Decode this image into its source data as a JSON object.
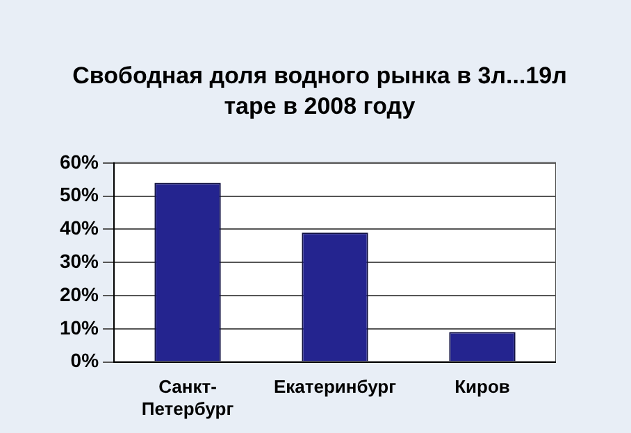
{
  "chart_data": {
    "type": "bar",
    "title": "Свободная доля водного рынка в 3л...19л таре в 2008 году",
    "categories": [
      "Санкт-Петербург",
      "Екатеринбург",
      "Киров"
    ],
    "values": [
      54,
      39,
      9
    ],
    "color": "#24248f",
    "ylim": [
      0,
      60
    ],
    "yticks": [
      {
        "value": 0,
        "label": "0%"
      },
      {
        "value": 10,
        "label": "10%"
      },
      {
        "value": 20,
        "label": "20%"
      },
      {
        "value": 30,
        "label": "30%"
      },
      {
        "value": 40,
        "label": "40%"
      },
      {
        "value": 50,
        "label": "50%"
      },
      {
        "value": 60,
        "label": "60%"
      }
    ],
    "grid": "y"
  }
}
